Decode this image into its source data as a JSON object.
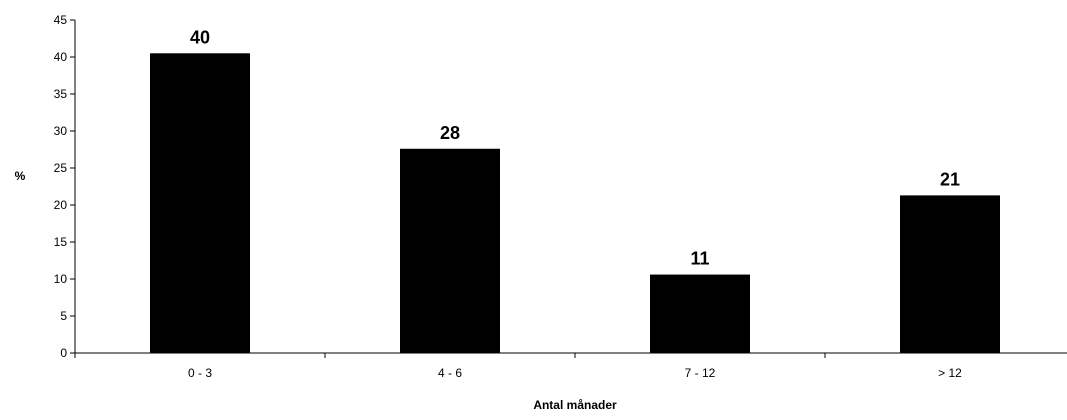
{
  "chart_data": {
    "type": "bar",
    "title": "",
    "xlabel": "Antal månader",
    "ylabel": "%",
    "categories": [
      "0 - 3",
      "4 - 6",
      "7 - 12",
      "> 12"
    ],
    "values": [
      40.5,
      27.6,
      10.6,
      21.3
    ],
    "data_labels": [
      "40",
      "28",
      "11",
      "21"
    ],
    "yticks": [
      "0",
      "5",
      "10",
      "15",
      "20",
      "25",
      "30",
      "35",
      "40",
      "45"
    ],
    "ylim": [
      0,
      45
    ],
    "grid": false,
    "legend": "none",
    "bar_color": "#000000"
  }
}
